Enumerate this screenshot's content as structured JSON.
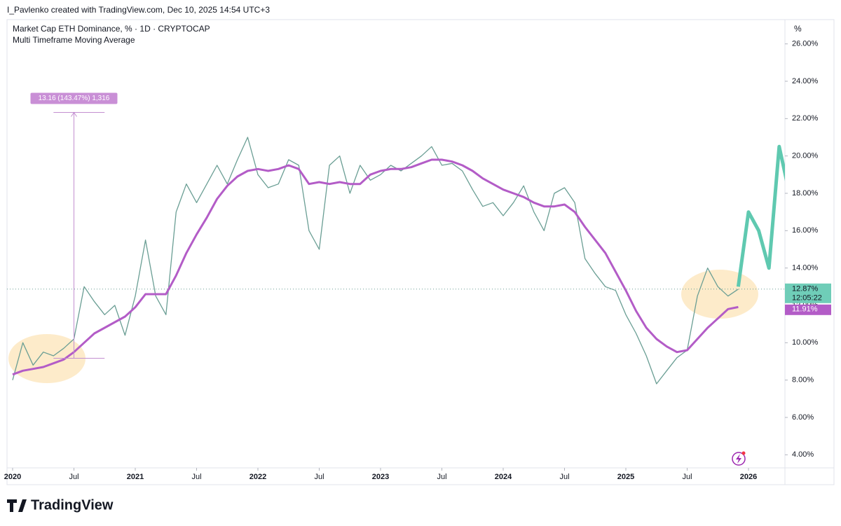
{
  "header": {
    "credit": "I_Pavlenko created with TradingView.com, Dec 10, 2025 14:54 UTC+3",
    "logo": "TradingView"
  },
  "chart_data": {
    "type": "line",
    "title": "Market Cap ETH Dominance, % · 1D · CRYPTOCAP",
    "subtitle": "Multi Timeframe Moving Average",
    "y_unit": "%",
    "x": [
      "2020-01",
      "2020-02",
      "2020-03",
      "2020-04",
      "2020-05",
      "2020-06",
      "2020-07",
      "2020-08",
      "2020-09",
      "2020-10",
      "2020-11",
      "2020-12",
      "2021-01",
      "2021-02",
      "2021-03",
      "2021-04",
      "2021-05",
      "2021-06",
      "2021-07",
      "2021-08",
      "2021-09",
      "2021-10",
      "2021-11",
      "2021-12",
      "2022-01",
      "2022-02",
      "2022-03",
      "2022-04",
      "2022-05",
      "2022-06",
      "2022-07",
      "2022-08",
      "2022-09",
      "2022-10",
      "2022-11",
      "2022-12",
      "2023-01",
      "2023-02",
      "2023-03",
      "2023-04",
      "2023-05",
      "2023-06",
      "2023-07",
      "2023-08",
      "2023-09",
      "2023-10",
      "2023-11",
      "2023-12",
      "2024-01",
      "2024-02",
      "2024-03",
      "2024-04",
      "2024-05",
      "2024-06",
      "2024-07",
      "2024-08",
      "2024-09",
      "2024-10",
      "2024-11",
      "2024-12",
      "2025-01",
      "2025-02",
      "2025-03",
      "2025-04",
      "2025-05",
      "2025-06",
      "2025-07",
      "2025-08",
      "2025-09",
      "2025-10",
      "2025-11",
      "2025-12"
    ],
    "series": [
      {
        "name": "Market Cap ETH Dominance, % · 1D · CRYPTOCAP",
        "color": "#6a9e94",
        "values": [
          8.0,
          10.0,
          8.8,
          9.5,
          9.3,
          9.7,
          10.2,
          13.0,
          12.2,
          11.5,
          12.0,
          10.4,
          12.5,
          15.5,
          12.5,
          11.5,
          17.0,
          18.5,
          17.5,
          18.5,
          19.5,
          18.5,
          19.8,
          21.0,
          19.0,
          18.3,
          18.5,
          19.8,
          19.5,
          16.0,
          15.0,
          19.5,
          20.0,
          18.0,
          19.5,
          18.7,
          19.0,
          19.5,
          19.2,
          19.6,
          20.0,
          20.5,
          19.5,
          19.6,
          19.2,
          18.2,
          17.3,
          17.5,
          16.8,
          17.5,
          18.4,
          17.0,
          16.0,
          18.0,
          18.3,
          17.5,
          14.5,
          13.7,
          13.0,
          12.8,
          11.5,
          10.5,
          9.3,
          7.8,
          8.5,
          9.2,
          9.6,
          12.5,
          14.0,
          13.0,
          12.5,
          12.87
        ]
      },
      {
        "name": "Multi Timeframe Moving Average",
        "color": "#b35cc7",
        "values": [
          8.3,
          8.5,
          8.6,
          8.7,
          8.9,
          9.1,
          9.5,
          10.0,
          10.5,
          10.8,
          11.1,
          11.4,
          11.9,
          12.6,
          12.6,
          12.6,
          13.6,
          14.8,
          15.8,
          16.7,
          17.7,
          18.4,
          18.9,
          19.2,
          19.3,
          19.2,
          19.3,
          19.5,
          19.3,
          18.5,
          18.6,
          18.5,
          18.6,
          18.5,
          18.5,
          19.0,
          19.2,
          19.3,
          19.3,
          19.4,
          19.6,
          19.8,
          19.8,
          19.7,
          19.5,
          19.2,
          18.8,
          18.5,
          18.2,
          18.0,
          17.8,
          17.5,
          17.3,
          17.3,
          17.4,
          17.0,
          16.2,
          15.5,
          14.8,
          13.8,
          12.8,
          11.7,
          10.8,
          10.2,
          9.8,
          9.5,
          9.6,
          10.2,
          10.8,
          11.3,
          11.8,
          11.91
        ]
      },
      {
        "color": "#5fc9b0",
        "x": [
          "2025-12",
          "2026-01",
          "2026-02",
          "2026-03",
          "2026-04",
          "2026-05"
        ],
        "values": [
          13.0,
          17.0,
          16.0,
          14.0,
          20.5,
          18.0
        ]
      }
    ],
    "ylim": [
      3.3,
      27.3
    ],
    "yticks": [
      {
        "value": 4,
        "label": "4.00%"
      },
      {
        "value": 6,
        "label": "6.00%"
      },
      {
        "value": 8,
        "label": "8.00%"
      },
      {
        "value": 10,
        "label": "10.00%"
      },
      {
        "value": 12,
        "label": "12.00%"
      },
      {
        "value": 14,
        "label": "14.00%"
      },
      {
        "value": 16,
        "label": "16.00%"
      },
      {
        "value": 18,
        "label": "18.00%"
      },
      {
        "value": 20,
        "label": "20.00%"
      },
      {
        "value": 22,
        "label": "22.00%"
      },
      {
        "value": 24,
        "label": "24.00%"
      },
      {
        "value": 26,
        "label": "26.00%"
      }
    ],
    "xticks": [
      {
        "value": "2020-01",
        "label": "2020"
      },
      {
        "value": "2020-07",
        "label": "Jul"
      },
      {
        "value": "2021-01",
        "label": "2021"
      },
      {
        "value": "2021-07",
        "label": "Jul"
      },
      {
        "value": "2022-01",
        "label": "2022"
      },
      {
        "value": "2022-07",
        "label": "Jul"
      },
      {
        "value": "2023-01",
        "label": "2023"
      },
      {
        "value": "2023-07",
        "label": "Jul"
      },
      {
        "value": "2024-01",
        "label": "2024"
      },
      {
        "value": "2024-07",
        "label": "Jul"
      },
      {
        "value": "2025-01",
        "label": "2025"
      },
      {
        "value": "2025-07",
        "label": "Jul"
      },
      {
        "value": "2026-01",
        "label": "2026"
      }
    ],
    "price_tag": {
      "value": 12.87,
      "label": "12.87%",
      "countdown": "12:05:22"
    },
    "ma_tag": {
      "value": 11.91,
      "label": "11.91%"
    },
    "measure": {
      "label": "13.16 (143.47%) 1,316",
      "from": 9.17,
      "to": 22.33,
      "x_from": "2020-05",
      "x_at": "2020-07",
      "x_to": "2020-10"
    }
  }
}
